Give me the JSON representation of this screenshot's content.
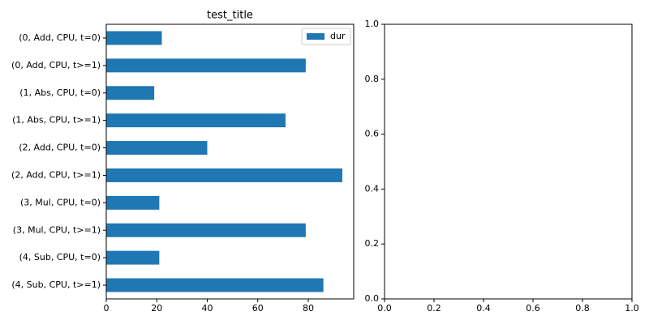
{
  "chart_data": [
    {
      "type": "bar",
      "orientation": "horizontal",
      "title": "test_title",
      "categories": [
        "(0, Add, CPU, t=0)",
        "(0, Add, CPU, t>=1)",
        "(1, Abs, CPU, t=0)",
        "(1, Abs, CPU, t>=1)",
        "(2, Add, CPU, t=0)",
        "(2, Add, CPU, t>=1)",
        "(3, Mul, CPU, t=0)",
        "(3, Mul, CPU, t>=1)",
        "(4, Sub, CPU, t=0)",
        "(4, Sub, CPU, t>=1)"
      ],
      "series": [
        {
          "name": "dur",
          "color": "#1f77b4",
          "values": [
            22,
            79,
            19,
            71,
            40,
            93.5,
            21,
            79,
            21,
            86
          ]
        }
      ],
      "xlim": [
        0,
        98
      ],
      "xticks": [
        0,
        20,
        40,
        60,
        80
      ],
      "legend": "upper right"
    },
    {
      "type": "empty",
      "xlim": [
        0,
        1
      ],
      "xticks": [
        {
          "value": 0,
          "label": "0.0"
        },
        0.2,
        0.4,
        0.6,
        0.8,
        {
          "value": 1,
          "label": "1.0"
        }
      ],
      "ylim": [
        0,
        1
      ],
      "yticks": [
        {
          "value": 0,
          "label": "0.0"
        },
        0.2,
        0.4,
        0.6,
        0.8,
        {
          "value": 1,
          "label": "1.0"
        }
      ]
    }
  ]
}
